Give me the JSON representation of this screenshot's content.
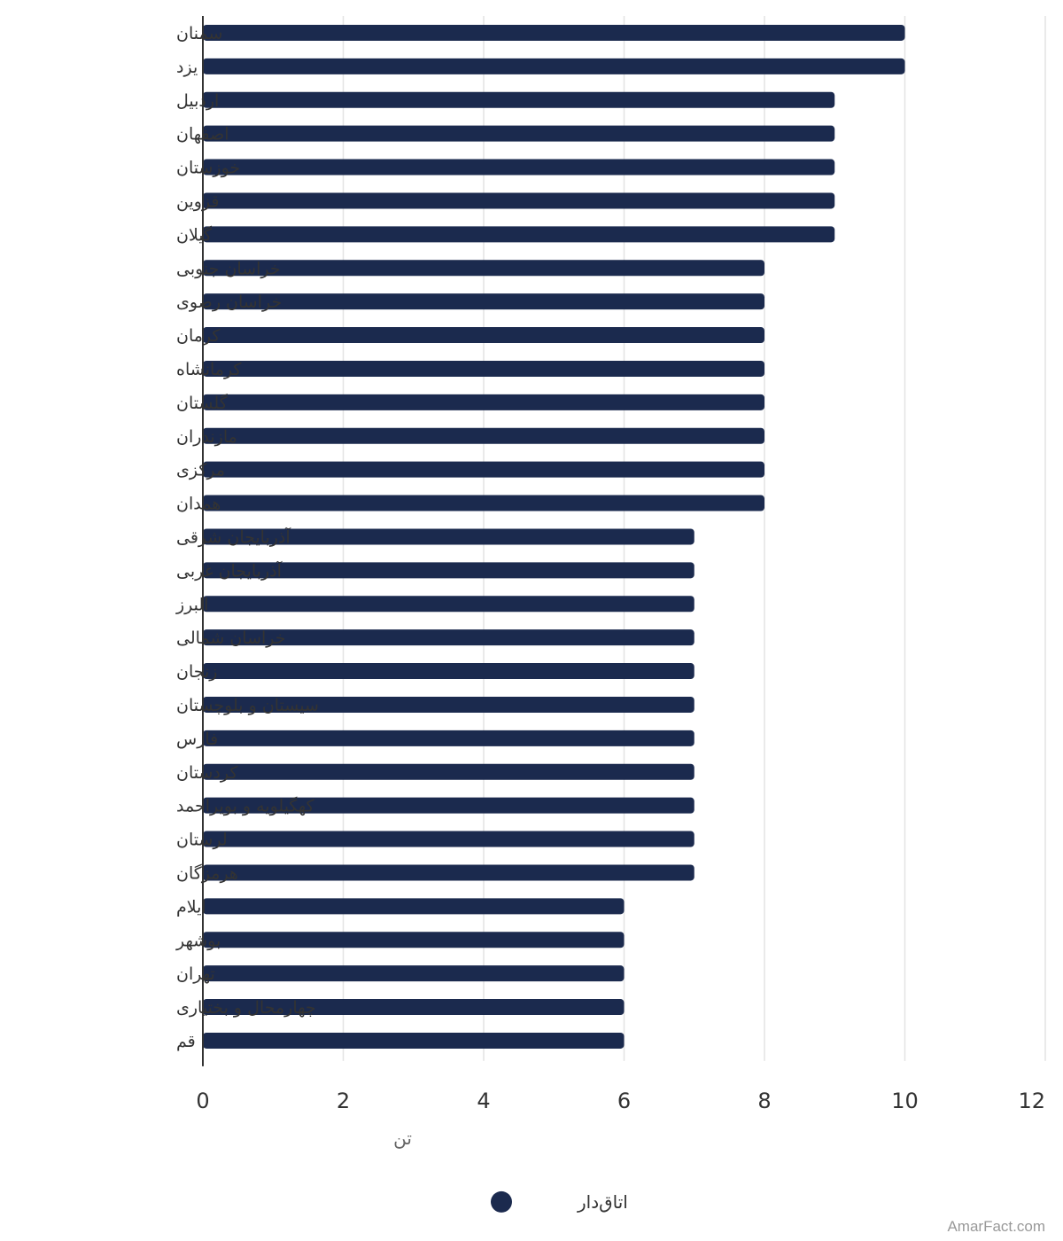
{
  "chart_data": {
    "type": "bar",
    "orientation": "horizontal",
    "categories": [
      "سمنان",
      "یزد",
      "اردبیل",
      "اصفهان",
      "خوزستان",
      "قزوین",
      "گیلان",
      "خراسان جنوبی",
      "خراسان رضوی",
      "کرمان",
      "کرمانشاه",
      "گلستان",
      "مازندران",
      "مرکزی",
      "همدان",
      "آذربایجان شرقی",
      "آذربایجان غربی",
      "البرز",
      "خراسان شمالی",
      "زنجان",
      "سیستان و بلوچستان",
      "فارس",
      "کردستان",
      "کهگیلویه و بویراحمد",
      "لرستان",
      "هرمزگان",
      "ایلام",
      "بوشهر",
      "تهران",
      "چهارمحال و بختیاری",
      "قم"
    ],
    "series": [
      {
        "name": "اتاق‌دار",
        "color": "#1b2a4e",
        "values": [
          10,
          10,
          9,
          9,
          9,
          9,
          9,
          8,
          8,
          8,
          8,
          8,
          8,
          8,
          8,
          7,
          7,
          7,
          7,
          7,
          7,
          7,
          7,
          7,
          7,
          7,
          6,
          6,
          6,
          6,
          6
        ]
      }
    ],
    "xlabel": "تن",
    "xlim": [
      0,
      12
    ],
    "xticks": [
      0,
      2,
      4,
      6,
      8,
      10,
      12
    ],
    "grid": true,
    "legend_position": "bottom-center"
  },
  "watermark": "AmarFact.com"
}
